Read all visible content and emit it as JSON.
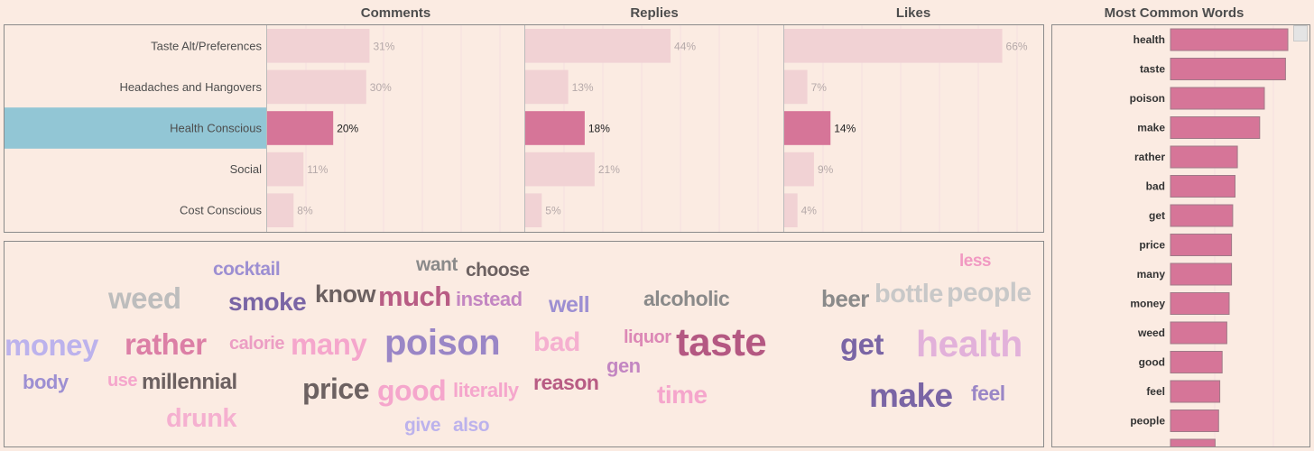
{
  "headers": {
    "comments": "Comments",
    "replies": "Replies",
    "likes": "Likes",
    "words": "Most Common Words"
  },
  "colors": {
    "highlight_bar": "#d67598",
    "faded_bar": "#f1d2d4",
    "highlight_row": "#92c6d5",
    "faded_label": "#b5a9a9"
  },
  "chart_data": [
    {
      "type": "bar",
      "orientation": "horizontal",
      "title": "Comments / Replies / Likes",
      "categories": [
        "Taste Alt/Preferences",
        "Headaches and Hangovers",
        "Health Conscious",
        "Social",
        "Cost Conscious"
      ],
      "highlighted_category": "Health Conscious",
      "series": [
        {
          "name": "Comments",
          "values": [
            31,
            30,
            20,
            11,
            8
          ],
          "labels": [
            "31%",
            "30%",
            "20%",
            "11%",
            "8%"
          ]
        },
        {
          "name": "Replies",
          "values": [
            44,
            13,
            18,
            21,
            5
          ],
          "labels": [
            "44%",
            "13%",
            "18%",
            "21%",
            "5%"
          ]
        },
        {
          "name": "Likes",
          "values": [
            66,
            7,
            14,
            9,
            4
          ],
          "labels": [
            "66%",
            "7%",
            "14%",
            "9%",
            "4%"
          ]
        }
      ]
    },
    {
      "type": "bar",
      "orientation": "horizontal",
      "title": "Most Common Words",
      "categories": [
        "health",
        "taste",
        "poison",
        "make",
        "rather",
        "bad",
        "get",
        "price",
        "many",
        "money",
        "weed",
        "good",
        "feel",
        "people"
      ],
      "values": [
        100,
        98,
        80,
        76,
        57,
        55,
        53,
        52,
        52,
        50,
        48,
        44,
        42,
        41
      ]
    },
    {
      "type": "wordcloud",
      "words": [
        {
          "text": "less",
          "color": "#f199c2"
        },
        {
          "text": "cocktail",
          "color": "#9d8fd2"
        },
        {
          "text": "want",
          "color": "#8a8a8a"
        },
        {
          "text": "choose",
          "color": "#6c6161"
        },
        {
          "text": "weed",
          "color": "#bdbdbd"
        },
        {
          "text": "smoke",
          "color": "#7a65a5"
        },
        {
          "text": "know",
          "color": "#6c6161"
        },
        {
          "text": "much",
          "color": "#b85c84"
        },
        {
          "text": "instead",
          "color": "#c386c2"
        },
        {
          "text": "well",
          "color": "#9d8fd2"
        },
        {
          "text": "alcoholic",
          "color": "#8a8a8a"
        },
        {
          "text": "beer",
          "color": "#8a8a8a"
        },
        {
          "text": "bottle",
          "color": "#c8c8c8"
        },
        {
          "text": "people",
          "color": "#c8c8c8"
        },
        {
          "text": "money",
          "color": "#bcb2ec"
        },
        {
          "text": "rather",
          "color": "#dc7fa6"
        },
        {
          "text": "calorie",
          "color": "#ec9ec4"
        },
        {
          "text": "many",
          "color": "#f5a6cc"
        },
        {
          "text": "poison",
          "color": "#9a86c6"
        },
        {
          "text": "bad",
          "color": "#f5b0d0"
        },
        {
          "text": "liquor",
          "color": "#dc88b6"
        },
        {
          "text": "taste",
          "color": "#b45882"
        },
        {
          "text": "get",
          "color": "#7a65a5"
        },
        {
          "text": "health",
          "color": "#e2b1da"
        },
        {
          "text": "body",
          "color": "#9d8fd2"
        },
        {
          "text": "use",
          "color": "#f5a6cc"
        },
        {
          "text": "millennial",
          "color": "#6c6161"
        },
        {
          "text": "price",
          "color": "#6c6161"
        },
        {
          "text": "good",
          "color": "#f5a6cc"
        },
        {
          "text": "literally",
          "color": "#f5a6cc"
        },
        {
          "text": "reason",
          "color": "#b85c84"
        },
        {
          "text": "gen",
          "color": "#c386c2"
        },
        {
          "text": "time",
          "color": "#f5a6cc"
        },
        {
          "text": "make",
          "color": "#7a65a5"
        },
        {
          "text": "feel",
          "color": "#9a86c6"
        },
        {
          "text": "drunk",
          "color": "#f5b0d0"
        },
        {
          "text": "give",
          "color": "#bcb2ec"
        },
        {
          "text": "also",
          "color": "#bcb2ec"
        }
      ]
    }
  ]
}
